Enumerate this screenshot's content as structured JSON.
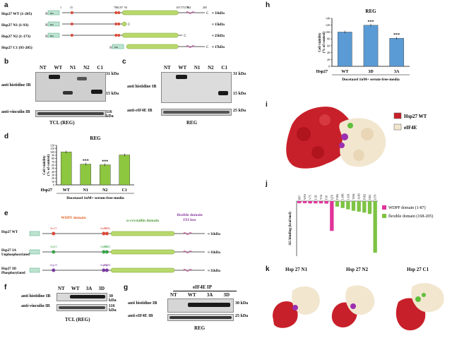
{
  "panel_letters": {
    "a": "a",
    "b": "b",
    "c": "c",
    "d": "d",
    "e": "e",
    "f": "f",
    "g": "g",
    "h": "h",
    "i": "i",
    "j": "j",
    "k": "k"
  },
  "a": {
    "constructs": [
      {
        "label": "Hsp27 WT (1-205)",
        "size": "≈ 31kDa"
      },
      {
        "label": "Hsp27 N1 (1-93)",
        "size": "≈ 15kDa"
      },
      {
        "label": "Hsp27 N2 (1-173)",
        "size": "≈ 25kDa"
      },
      {
        "label": "Hsp27 C1 (93-205)",
        "size": "≈ 17kDa"
      }
    ],
    "tag": "His",
    "nterm": "N",
    "cterm": "C",
    "positions": [
      "1",
      "15",
      "78",
      "82",
      "87",
      "93",
      "167",
      "173",
      "179",
      "182",
      "205"
    ]
  },
  "b": {
    "lanes": [
      "NT",
      "WT",
      "N1",
      "N2",
      "C1"
    ],
    "mw_top": "31 kDa",
    "mw_mid": "15 kDa",
    "mw_bottom": "116 kDa",
    "ib_top": "anti histidine IB",
    "ib_bottom": "anti-vinculin IB",
    "caption": "TCL (REG)"
  },
  "c": {
    "lanes": [
      "NT",
      "WT",
      "N1",
      "N2",
      "C1"
    ],
    "mw_top": "31 kDa",
    "mw_mid": "15 kDa",
    "mw_bottom": "25 kDa",
    "ib_top": "anti histidine IB",
    "ib_bottom": "anti-eIF4E IB",
    "caption": "REG"
  },
  "d": {
    "chart_data": {
      "type": "bar",
      "title": "REG",
      "ylabel": "Cell viability\n(% of control)",
      "xlabel": "Docetaxel 1nM+ serum-free-media",
      "row_label": "Hsp27",
      "categories": [
        "WT",
        "N1",
        "N2",
        "C1"
      ],
      "values": [
        100,
        63,
        61,
        91
      ],
      "ylim": [
        0,
        120
      ],
      "yticks": [
        0,
        10,
        20,
        30,
        40,
        50,
        60,
        70,
        80,
        90,
        100,
        110,
        120
      ],
      "significance": [
        "",
        "***",
        "***",
        ""
      ],
      "color": "#8dc63f"
    }
  },
  "e": {
    "domains": {
      "wdpf": "WDPF domain",
      "acd": "α-crystallin domain",
      "flex": "flexible domain",
      "ixi": "IXI box"
    },
    "rows": [
      {
        "label": "Hsp27 WT",
        "size": "≈ 31kDa",
        "sites": [
          "Ser15",
          "Ser78",
          "Ser82"
        ]
      },
      {
        "label": "Hsp27 3A\nUnphosphorylated",
        "size": "≈ 31kDa",
        "sites": [
          "Ala15",
          "Ala78",
          "Ala82"
        ]
      },
      {
        "label": "Hsp27 3D\nPhosphorylated",
        "size": "≈ 31kDa",
        "sites": [
          "Asp15",
          "Asp78",
          "Asp82"
        ]
      }
    ]
  },
  "f": {
    "lanes": [
      "NT",
      "WT",
      "3A",
      "3D"
    ],
    "mw_top": "30 kDa",
    "mw_bottom": "116 kDa",
    "ib_top": "anti histidine IB",
    "ib_bottom": "anti-vinculin IB",
    "caption": "TCL (REG)"
  },
  "g": {
    "header": "eIF4E IP",
    "lanes": [
      "NT",
      "WT",
      "3A",
      "3D"
    ],
    "mw_top": "30 kDa",
    "mw_bottom": "25 kDa",
    "ib_top": "anti histidine IB",
    "ib_bottom": "anti-eIF4E IB",
    "caption": "REG"
  },
  "h": {
    "chart_data": {
      "type": "bar",
      "title": "REG",
      "ylabel": "Cell viability\n(% of control)",
      "xlabel": "Docetaxel 1nM+ serum-free-media",
      "row_label": "Hsp27",
      "categories": [
        "WT",
        "3D",
        "3A"
      ],
      "values": [
        100,
        120,
        82
      ],
      "ylim": [
        0,
        140
      ],
      "yticks": [
        0,
        20,
        40,
        60,
        80,
        100,
        120,
        140
      ],
      "significance": [
        "",
        "***",
        "***"
      ],
      "color": "#5b9bd5"
    }
  },
  "i": {
    "legend": [
      {
        "label": "Hsp27 WT",
        "color": "#c8202a"
      },
      {
        "label": "eIF4E",
        "color": "#f2e6cf"
      }
    ]
  },
  "j": {
    "chart_data": {
      "type": "bar",
      "ylabel": "ΔG binding (kcal/mol)",
      "categories": [
        "P67",
        "W16",
        "V75",
        "L56",
        "Y34",
        "F10",
        "Q70",
        "F185",
        "L186",
        "L191",
        "T184",
        "A183",
        "P182",
        "I181",
        "I179"
      ],
      "values": [
        -0.9,
        -0.9,
        -1.0,
        -1.0,
        -1.0,
        -1.1,
        -13.0,
        -2.4,
        -3.0,
        -3.6,
        -4.2,
        -4.6,
        -5.0,
        -5.6,
        -22.5
      ],
      "groups": [
        "wdpf",
        "wdpf",
        "wdpf",
        "wdpf",
        "wdpf",
        "wdpf",
        "wdpf",
        "flex",
        "flex",
        "flex",
        "flex",
        "flex",
        "flex",
        "flex",
        "flex"
      ],
      "ylim": [
        -24,
        0
      ],
      "legend": [
        {
          "key": "wdpf",
          "label": "WDPF domain (1-87)",
          "color": "#e0349a"
        },
        {
          "key": "flex",
          "label": "flexible domain (168-205)",
          "color": "#7dc343"
        }
      ]
    }
  },
  "k": {
    "titles": [
      "Hsp 27 N1",
      "Hsp 27 N2",
      "Hsp 27 C1"
    ]
  }
}
